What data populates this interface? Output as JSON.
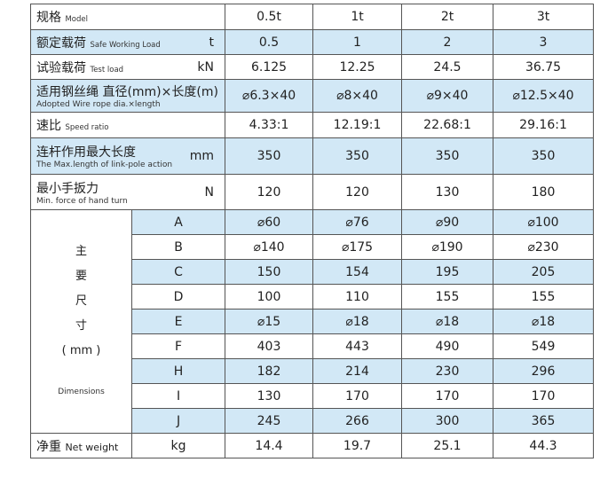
{
  "colors": {
    "row_highlight": "#d2e8f6",
    "border": "#555555"
  },
  "header": {
    "label_zh": "规格",
    "label_en": "Model",
    "models": [
      "0.5t",
      "1t",
      "2t",
      "3t"
    ]
  },
  "rows": [
    {
      "zh": "额定载荷",
      "en": "Safe Working  Load",
      "unit": "t",
      "values": [
        "0.5",
        "1",
        "2",
        "3"
      ]
    },
    {
      "zh": "试验载荷",
      "en": "Test load",
      "unit": "kN",
      "values": [
        "6.125",
        "12.25",
        "24.5",
        "36.75"
      ]
    },
    {
      "zh": "适用钢丝绳  直径(mm)×长度(m)",
      "en": "Adopted Wire rope          dia.×length",
      "unit": "",
      "values": [
        "⌀6.3×40",
        "⌀8×40",
        "⌀9×40",
        "⌀12.5×40"
      ]
    },
    {
      "zh": "速比",
      "en": "Speed ratio",
      "unit": "",
      "values": [
        "4.33:1",
        "12.19:1",
        "22.68:1",
        "29.16:1"
      ]
    },
    {
      "zh": "连杆作用最大长度",
      "en": "The Max.length of link-pole action",
      "unit": "mm",
      "values": [
        "350",
        "350",
        "350",
        "350"
      ]
    },
    {
      "zh": "最小手扳力",
      "en": "Min. force of hand turn",
      "unit": "N",
      "values": [
        "120",
        "120",
        "130",
        "180"
      ]
    }
  ],
  "dimensions": {
    "label_zh": [
      "主",
      "要",
      "尺",
      "寸",
      "( mm )"
    ],
    "label_en": "Dimensions",
    "items": [
      {
        "key": "A",
        "values": [
          "⌀60",
          "⌀76",
          "⌀90",
          "⌀100"
        ]
      },
      {
        "key": "B",
        "values": [
          "⌀140",
          "⌀175",
          "⌀190",
          "⌀230"
        ]
      },
      {
        "key": "C",
        "values": [
          "150",
          "154",
          "195",
          "205"
        ]
      },
      {
        "key": "D",
        "values": [
          "100",
          "110",
          "155",
          "155"
        ]
      },
      {
        "key": "E",
        "values": [
          "⌀15",
          "⌀18",
          "⌀18",
          "⌀18"
        ]
      },
      {
        "key": "F",
        "values": [
          "403",
          "443",
          "490",
          "549"
        ]
      },
      {
        "key": "H",
        "values": [
          "182",
          "214",
          "230",
          "296"
        ]
      },
      {
        "key": "I",
        "values": [
          "130",
          "170",
          "170",
          "170"
        ]
      },
      {
        "key": "J",
        "values": [
          "245",
          "266",
          "300",
          "365"
        ]
      }
    ]
  },
  "net_weight": {
    "zh": "净重",
    "en": "Net weight",
    "unit": "kg",
    "values": [
      "14.4",
      "19.7",
      "25.1",
      "44.3"
    ]
  }
}
